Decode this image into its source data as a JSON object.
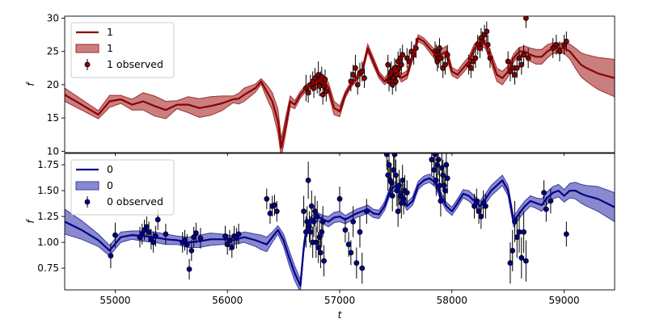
{
  "chart_data": [
    {
      "type": "line",
      "panel": "top",
      "ylabel": "f",
      "xlabel": "",
      "xlim": [
        54550,
        59450
      ],
      "ylim": [
        9.8,
        30.3
      ],
      "yticks": [
        10,
        15,
        20,
        25,
        30
      ],
      "yticklabels": [
        "10",
        "15",
        "20",
        "25",
        "30"
      ],
      "xticks": [
        55000,
        56000,
        57000,
        58000,
        59000
      ],
      "xticklabels": [],
      "color": "#8b0000",
      "band_color": "#a52a2a",
      "legend_position": "upper-left",
      "legend": [
        "1",
        "1",
        "1 observed"
      ],
      "mean": {
        "x": [
          54550,
          54700,
          54850,
          54950,
          55050,
          55150,
          55250,
          55350,
          55450,
          55550,
          55650,
          55750,
          55850,
          55950,
          56050,
          56100,
          56150,
          56250,
          56300,
          56350,
          56400,
          56450,
          56480,
          56520,
          56560,
          56600,
          56650,
          56700,
          56750,
          56800,
          56850,
          56900,
          56950,
          57000,
          57050,
          57100,
          57150,
          57200,
          57250,
          57300,
          57350,
          57400,
          57450,
          57500,
          57550,
          57600,
          57700,
          57750,
          57800,
          57850,
          57900,
          57950,
          58000,
          58050,
          58100,
          58150,
          58200,
          58250,
          58300,
          58350,
          58400,
          58450,
          58500,
          58550,
          58600,
          58650,
          58700,
          58750,
          58800,
          58850,
          58900,
          58950,
          59000,
          59050,
          59100,
          59150,
          59200,
          59300,
          59450
        ],
        "y": [
          18.5,
          17.0,
          15.5,
          17.5,
          17.8,
          17.0,
          17.5,
          16.8,
          16.2,
          17.0,
          17.0,
          16.5,
          16.8,
          17.2,
          17.8,
          17.9,
          18.5,
          19.5,
          20.5,
          19.0,
          17.5,
          14.5,
          10.5,
          14.0,
          17.5,
          17.0,
          18.5,
          19.5,
          20.0,
          20.5,
          21.0,
          19.5,
          16.5,
          16.0,
          18.5,
          20.0,
          21.0,
          22.0,
          25.5,
          23.5,
          21.5,
          20.5,
          21.5,
          22.5,
          21.0,
          21.5,
          27.0,
          26.5,
          25.5,
          24.5,
          24.5,
          25.0,
          22.0,
          21.5,
          22.5,
          23.5,
          25.5,
          26.5,
          26.0,
          24.0,
          21.5,
          21.0,
          22.0,
          24.0,
          25.0,
          25.0,
          24.5,
          24.2,
          24.2,
          25.0,
          25.5,
          25.5,
          25.5,
          25.0,
          24.0,
          23.0,
          22.5,
          21.7,
          21.0
        ],
        "sigma": [
          1.0,
          0.8,
          0.6,
          0.9,
          0.6,
          0.8,
          1.3,
          1.5,
          1.3,
          0.6,
          1.2,
          1.4,
          1.4,
          1.1,
          0.5,
          0.8,
          1.0,
          0.6,
          0.4,
          1.0,
          1.3,
          1.8,
          1.4,
          1.2,
          0.8,
          0.6,
          0.5,
          0.5,
          0.4,
          0.4,
          0.5,
          0.8,
          1.0,
          0.8,
          0.5,
          0.4,
          0.4,
          0.5,
          0.6,
          0.6,
          0.5,
          0.5,
          0.6,
          0.6,
          0.6,
          0.6,
          0.5,
          0.5,
          0.6,
          0.7,
          0.8,
          0.8,
          0.6,
          0.6,
          0.7,
          0.7,
          0.6,
          0.5,
          0.6,
          0.8,
          1.0,
          1.0,
          0.8,
          0.6,
          0.6,
          0.8,
          1.0,
          1.1,
          1.1,
          1.0,
          0.8,
          0.7,
          0.8,
          1.1,
          1.5,
          1.8,
          2.0,
          2.4,
          2.8
        ]
      },
      "observed": {
        "x": [
          56700,
          56720,
          56740,
          56760,
          56770,
          56780,
          56800,
          56810,
          56820,
          56830,
          56840,
          56850,
          56860,
          56870,
          56880,
          57100,
          57120,
          57140,
          57160,
          57180,
          57200,
          57220,
          57430,
          57440,
          57450,
          57460,
          57470,
          57480,
          57490,
          57500,
          57510,
          57520,
          57530,
          57540,
          57550,
          57560,
          57600,
          57620,
          57640,
          57660,
          57680,
          57850,
          57860,
          57870,
          57880,
          57890,
          57900,
          57920,
          57940,
          57960,
          58150,
          58170,
          58190,
          58210,
          58230,
          58250,
          58260,
          58270,
          58290,
          58310,
          58320,
          58340,
          58500,
          58520,
          58540,
          58560,
          58580,
          58600,
          58620,
          58640,
          58660,
          58680,
          58900,
          58930,
          58960,
          59000,
          59020
        ],
        "y": [
          19.5,
          18.8,
          20.0,
          20.5,
          19.5,
          21.0,
          20.2,
          21.5,
          19.8,
          20.5,
          21.2,
          18.5,
          19.8,
          20.8,
          19.0,
          20.5,
          21.5,
          22.5,
          20.0,
          21.8,
          22.0,
          21.0,
          23.0,
          20.5,
          21.5,
          22.0,
          20.0,
          21.0,
          22.5,
          20.5,
          21.5,
          23.5,
          22.5,
          24.0,
          23.0,
          24.5,
          24.0,
          23.5,
          25.0,
          24.5,
          25.5,
          25.0,
          24.5,
          23.5,
          24.0,
          25.5,
          24.0,
          22.5,
          23.0,
          24.5,
          23.0,
          22.5,
          23.5,
          24.0,
          26.0,
          25.5,
          27.0,
          26.5,
          27.5,
          28.0,
          26.0,
          24.0,
          23.5,
          22.0,
          22.5,
          21.5,
          22.5,
          24.0,
          23.0,
          24.5,
          30.0,
          24.0,
          25.5,
          26.0,
          25.0,
          26.0,
          26.5
        ],
        "err": [
          2.0,
          1.5,
          1.5,
          1.5,
          1.5,
          1.5,
          1.5,
          2.0,
          1.5,
          1.5,
          1.5,
          1.5,
          1.5,
          1.5,
          1.5,
          1.5,
          1.5,
          2.0,
          1.5,
          1.5,
          1.5,
          1.5,
          1.5,
          1.5,
          1.5,
          1.5,
          1.5,
          1.5,
          1.5,
          1.5,
          1.5,
          1.5,
          1.5,
          1.5,
          1.5,
          1.5,
          1.5,
          1.5,
          1.5,
          1.5,
          1.5,
          1.5,
          1.5,
          1.5,
          1.5,
          1.5,
          1.5,
          1.5,
          1.5,
          1.5,
          1.5,
          1.5,
          1.5,
          1.5,
          1.5,
          1.5,
          1.5,
          1.5,
          1.5,
          1.5,
          1.5,
          1.5,
          1.5,
          1.5,
          1.5,
          1.5,
          1.5,
          1.5,
          1.5,
          1.5,
          1.5,
          1.5,
          1.5,
          1.5,
          1.5,
          1.5,
          1.5
        ]
      }
    },
    {
      "type": "line",
      "panel": "bottom",
      "ylabel": "f",
      "xlabel": "t",
      "xlim": [
        54550,
        59450
      ],
      "ylim": [
        0.54,
        1.86
      ],
      "yticks": [
        0.75,
        1.0,
        1.25,
        1.5,
        1.75
      ],
      "yticklabels": [
        "0.75",
        "1.00",
        "1.25",
        "1.50",
        "1.75"
      ],
      "xticks": [
        55000,
        56000,
        57000,
        58000,
        59000
      ],
      "xticklabels": [
        "55000",
        "56000",
        "57000",
        "58000",
        "59000"
      ],
      "color": "#00008b",
      "band_color": "#3b3bab",
      "legend_position": "upper-left",
      "legend": [
        "0",
        "0",
        "0 observed"
      ],
      "mean": {
        "x": [
          54550,
          54700,
          54850,
          54950,
          55050,
          55150,
          55250,
          55350,
          55450,
          55550,
          55650,
          55750,
          55850,
          55950,
          56050,
          56150,
          56250,
          56300,
          56350,
          56400,
          56450,
          56500,
          56550,
          56600,
          56650,
          56680,
          56700,
          56750,
          56800,
          56850,
          56900,
          56950,
          57000,
          57050,
          57100,
          57150,
          57200,
          57250,
          57300,
          57350,
          57400,
          57450,
          57500,
          57550,
          57600,
          57650,
          57700,
          57750,
          57800,
          57850,
          57900,
          57950,
          58000,
          58050,
          58100,
          58150,
          58200,
          58250,
          58300,
          58350,
          58400,
          58450,
          58500,
          58550,
          58600,
          58650,
          58700,
          58750,
          58800,
          58850,
          58900,
          58950,
          59000,
          59050,
          59100,
          59150,
          59200,
          59300,
          59450
        ],
        "y": [
          1.2,
          1.12,
          1.02,
          0.92,
          1.05,
          1.07,
          1.06,
          1.05,
          1.03,
          1.02,
          1.0,
          1.01,
          1.03,
          1.03,
          1.02,
          1.05,
          1.02,
          1.0,
          0.98,
          1.05,
          1.12,
          1.02,
          0.85,
          0.7,
          0.58,
          0.95,
          1.1,
          1.22,
          1.25,
          1.22,
          1.2,
          1.24,
          1.25,
          1.22,
          1.25,
          1.28,
          1.3,
          1.32,
          1.28,
          1.27,
          1.35,
          1.5,
          1.55,
          1.45,
          1.35,
          1.4,
          1.55,
          1.6,
          1.62,
          1.58,
          1.45,
          1.35,
          1.3,
          1.38,
          1.47,
          1.45,
          1.4,
          1.35,
          1.42,
          1.5,
          1.55,
          1.6,
          1.5,
          1.2,
          1.28,
          1.35,
          1.4,
          1.38,
          1.36,
          1.43,
          1.48,
          1.5,
          1.45,
          1.5,
          1.5,
          1.47,
          1.45,
          1.42,
          1.34
        ],
        "sigma": [
          0.12,
          0.09,
          0.06,
          0.05,
          0.05,
          0.04,
          0.05,
          0.05,
          0.05,
          0.04,
          0.05,
          0.06,
          0.06,
          0.05,
          0.04,
          0.05,
          0.06,
          0.07,
          0.07,
          0.05,
          0.04,
          0.06,
          0.07,
          0.07,
          0.06,
          0.05,
          0.04,
          0.04,
          0.04,
          0.04,
          0.05,
          0.05,
          0.05,
          0.04,
          0.04,
          0.04,
          0.04,
          0.04,
          0.04,
          0.04,
          0.04,
          0.04,
          0.04,
          0.04,
          0.04,
          0.04,
          0.04,
          0.04,
          0.04,
          0.04,
          0.04,
          0.04,
          0.04,
          0.04,
          0.04,
          0.05,
          0.05,
          0.05,
          0.05,
          0.05,
          0.05,
          0.05,
          0.05,
          0.05,
          0.05,
          0.05,
          0.05,
          0.05,
          0.06,
          0.06,
          0.06,
          0.06,
          0.06,
          0.07,
          0.08,
          0.09,
          0.1,
          0.12,
          0.14
        ]
      },
      "observed": {
        "x": [
          54960,
          55000,
          55220,
          55240,
          55260,
          55280,
          55300,
          55320,
          55340,
          55360,
          55380,
          55450,
          55600,
          55620,
          55640,
          55660,
          55680,
          55700,
          55720,
          55760,
          55980,
          56000,
          56020,
          56040,
          56060,
          56080,
          56100,
          56350,
          56380,
          56400,
          56420,
          56440,
          56680,
          56700,
          56710,
          56720,
          56730,
          56740,
          56750,
          56760,
          56770,
          56780,
          56790,
          56800,
          56810,
          56820,
          56830,
          56840,
          56850,
          56860,
          57000,
          57050,
          57080,
          57100,
          57120,
          57150,
          57180,
          57200,
          57240,
          57420,
          57430,
          57440,
          57450,
          57460,
          57470,
          57480,
          57490,
          57500,
          57510,
          57520,
          57530,
          57540,
          57550,
          57560,
          57570,
          57580,
          57600,
          57820,
          57840,
          57850,
          57860,
          57870,
          57880,
          57890,
          57900,
          57910,
          57920,
          57930,
          57940,
          57950,
          57960,
          58200,
          58220,
          58240,
          58260,
          58280,
          58300,
          58520,
          58540,
          58560,
          58580,
          58600,
          58620,
          58640,
          58660,
          58820,
          58840,
          58880,
          59020
        ],
        "y": [
          0.87,
          1.07,
          1.05,
          1.08,
          1.12,
          1.15,
          1.1,
          1.03,
          1.0,
          1.06,
          1.22,
          1.08,
          1.0,
          1.02,
          0.98,
          0.74,
          0.92,
          1.05,
          1.09,
          1.04,
          1.06,
          0.98,
          1.02,
          0.95,
          1.06,
          1.04,
          1.08,
          1.42,
          1.28,
          1.35,
          1.36,
          1.3,
          1.3,
          1.1,
          1.2,
          1.6,
          1.15,
          1.1,
          1.35,
          1.0,
          1.2,
          1.3,
          1.0,
          1.25,
          0.95,
          1.05,
          0.9,
          1.1,
          1.2,
          0.82,
          1.42,
          1.12,
          0.98,
          0.9,
          1.2,
          0.8,
          1.1,
          0.75,
          1.3,
          1.85,
          1.65,
          1.75,
          1.6,
          1.58,
          1.45,
          1.7,
          1.85,
          1.65,
          1.5,
          1.3,
          1.55,
          1.45,
          1.38,
          1.6,
          1.42,
          1.5,
          1.48,
          1.8,
          1.7,
          1.85,
          1.6,
          1.75,
          1.8,
          1.55,
          1.4,
          1.72,
          1.65,
          1.55,
          1.5,
          1.75,
          1.62,
          1.35,
          1.4,
          1.3,
          1.25,
          1.38,
          1.35,
          0.8,
          0.92,
          1.2,
          1.05,
          1.1,
          0.85,
          1.1,
          0.82,
          1.48,
          1.32,
          1.4,
          1.08
        ],
        "err": [
          0.12,
          0.12,
          0.1,
          0.1,
          0.1,
          0.1,
          0.1,
          0.1,
          0.1,
          0.1,
          0.1,
          0.1,
          0.1,
          0.1,
          0.1,
          0.1,
          0.1,
          0.1,
          0.1,
          0.1,
          0.1,
          0.1,
          0.1,
          0.1,
          0.1,
          0.1,
          0.1,
          0.1,
          0.1,
          0.1,
          0.1,
          0.1,
          0.15,
          0.15,
          0.15,
          0.18,
          0.15,
          0.15,
          0.15,
          0.15,
          0.15,
          0.15,
          0.15,
          0.15,
          0.15,
          0.15,
          0.15,
          0.15,
          0.15,
          0.15,
          0.12,
          0.12,
          0.12,
          0.12,
          0.15,
          0.15,
          0.15,
          0.15,
          0.12,
          0.15,
          0.15,
          0.15,
          0.15,
          0.15,
          0.15,
          0.15,
          0.15,
          0.15,
          0.15,
          0.15,
          0.15,
          0.15,
          0.15,
          0.15,
          0.15,
          0.15,
          0.12,
          0.15,
          0.15,
          0.15,
          0.15,
          0.15,
          0.15,
          0.15,
          0.15,
          0.15,
          0.15,
          0.15,
          0.15,
          0.15,
          0.15,
          0.12,
          0.12,
          0.12,
          0.12,
          0.12,
          0.12,
          0.2,
          0.2,
          0.2,
          0.2,
          0.2,
          0.2,
          0.2,
          0.2,
          0.12,
          0.12,
          0.12,
          0.12
        ]
      }
    }
  ]
}
